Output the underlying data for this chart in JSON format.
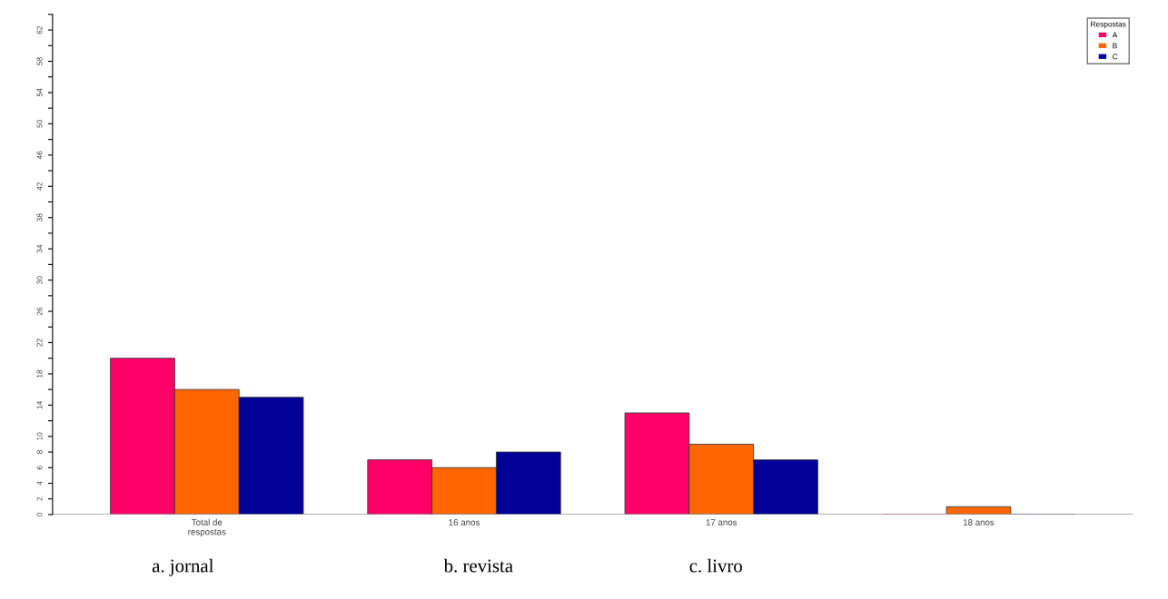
{
  "chart_data": {
    "type": "bar",
    "categories": [
      "Total de\nrespostas",
      "16 anos",
      "17 anos",
      "18 anos"
    ],
    "series": [
      {
        "name": "A",
        "color": "#ff0066",
        "values": [
          20,
          7,
          13,
          0
        ]
      },
      {
        "name": "B",
        "color": "#ff6600",
        "values": [
          16,
          6,
          9,
          1
        ]
      },
      {
        "name": "C",
        "color": "#000099",
        "values": [
          15,
          8,
          7,
          0
        ]
      }
    ],
    "legend_title": "Respostas",
    "legend": "top right",
    "ylim": [
      0,
      64
    ],
    "yticks": [
      0,
      2,
      4,
      6,
      8,
      10,
      {
        "value": 12,
        "label": null
      },
      14,
      {
        "value": 16,
        "label": null
      },
      18,
      {
        "value": 20,
        "label": null
      },
      22,
      {
        "value": 24,
        "label": null
      },
      26,
      {
        "value": 28,
        "label": null
      },
      30,
      {
        "value": 32,
        "label": null
      },
      34,
      {
        "value": 36,
        "label": null
      },
      38,
      {
        "value": 40,
        "label": null
      },
      42,
      {
        "value": 44,
        "label": null
      },
      46,
      {
        "value": 48,
        "label": null
      },
      50,
      {
        "value": 52,
        "label": null
      },
      54,
      {
        "value": 56,
        "label": null
      },
      58,
      {
        "value": 60,
        "label": null
      },
      62,
      {
        "value": 64,
        "label": null
      }
    ],
    "annotations": [
      "a. jornal",
      "b. revista",
      "c. livro"
    ]
  }
}
